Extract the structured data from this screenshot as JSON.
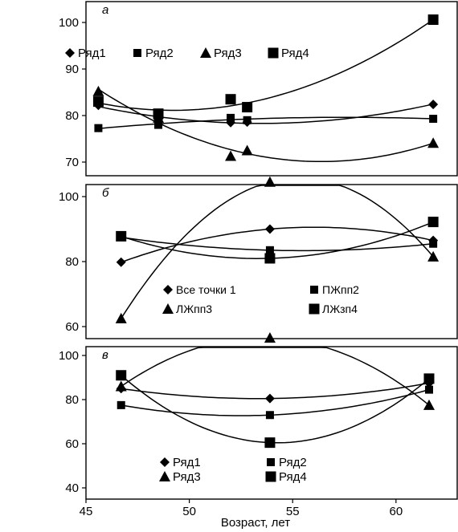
{
  "x_axis": {
    "label": "Возраст, лет",
    "ticks": [
      45,
      50,
      55,
      60
    ],
    "range": [
      45,
      63
    ]
  },
  "chart_data": [
    {
      "type": "scatter",
      "panel_label": "а",
      "ylim": [
        70,
        105
      ],
      "yticks": [
        70,
        80,
        90,
        100
      ],
      "legend_columns": 4,
      "series": [
        {
          "name": "Ряд1",
          "marker": "diamond",
          "x": [
            45.6,
            48.5,
            52,
            52.8,
            61.8
          ],
          "y": [
            82.2,
            79.2,
            78.5,
            78.6,
            82.4
          ]
        },
        {
          "name": "Ряд2",
          "marker": "square-small",
          "x": [
            45.6,
            48.5,
            52,
            52.8,
            61.8
          ],
          "y": [
            77.3,
            78,
            79.5,
            79,
            79.3
          ]
        },
        {
          "name": "Ряд3",
          "marker": "triangle",
          "x": [
            45.6,
            48.5,
            52,
            52.8,
            61.8
          ],
          "y": [
            85.2,
            79.5,
            71.3,
            72.5,
            74.1
          ]
        },
        {
          "name": "Ряд4",
          "marker": "square",
          "x": [
            45.6,
            48.5,
            52,
            52.8,
            61.8
          ],
          "y": [
            83,
            80.4,
            83.5,
            81.8,
            100.6
          ]
        }
      ]
    },
    {
      "type": "scatter",
      "panel_label": "б",
      "ylim": [
        60,
        110
      ],
      "yticks": [
        60,
        80,
        100
      ],
      "legend_columns": 2,
      "series": [
        {
          "name": "Все точки 1",
          "marker": "diamond",
          "x": [
            46.7,
            53.9,
            61.8
          ],
          "y": [
            79.8,
            90,
            86.5
          ]
        },
        {
          "name": "ПЖпп2",
          "marker": "square-small",
          "x": [
            46.7,
            53.9,
            61.8
          ],
          "y": [
            87.5,
            83.5,
            85.5
          ]
        },
        {
          "name": "ЛЖпп3",
          "marker": "triangle",
          "x": [
            46.7,
            53.9,
            61.8
          ],
          "y": [
            62.5,
            104.5,
            81.5
          ]
        },
        {
          "name": "ЛЖзп4",
          "marker": "square",
          "x": [
            46.7,
            53.9,
            61.8
          ],
          "y": [
            87.8,
            81,
            92.2
          ]
        }
      ]
    },
    {
      "type": "scatter",
      "panel_label": "в",
      "ylim": [
        40,
        120
      ],
      "yticks": [
        40,
        60,
        80,
        100
      ],
      "legend_columns": 2,
      "series": [
        {
          "name": "Ряд1",
          "marker": "diamond",
          "x": [
            46.7,
            53.9,
            61.6
          ],
          "y": [
            85,
            80.5,
            87.5
          ]
        },
        {
          "name": "Ряд2",
          "marker": "square-small",
          "x": [
            46.7,
            53.9,
            61.6
          ],
          "y": [
            77.5,
            73,
            84.5
          ]
        },
        {
          "name": "Ряд3",
          "marker": "triangle",
          "x": [
            46.7,
            53.9,
            61.6
          ],
          "y": [
            86,
            108,
            77.5
          ]
        },
        {
          "name": "Ряд4",
          "marker": "square",
          "x": [
            46.7,
            53.9,
            61.6
          ],
          "y": [
            91,
            60.5,
            89.5
          ]
        }
      ]
    }
  ]
}
